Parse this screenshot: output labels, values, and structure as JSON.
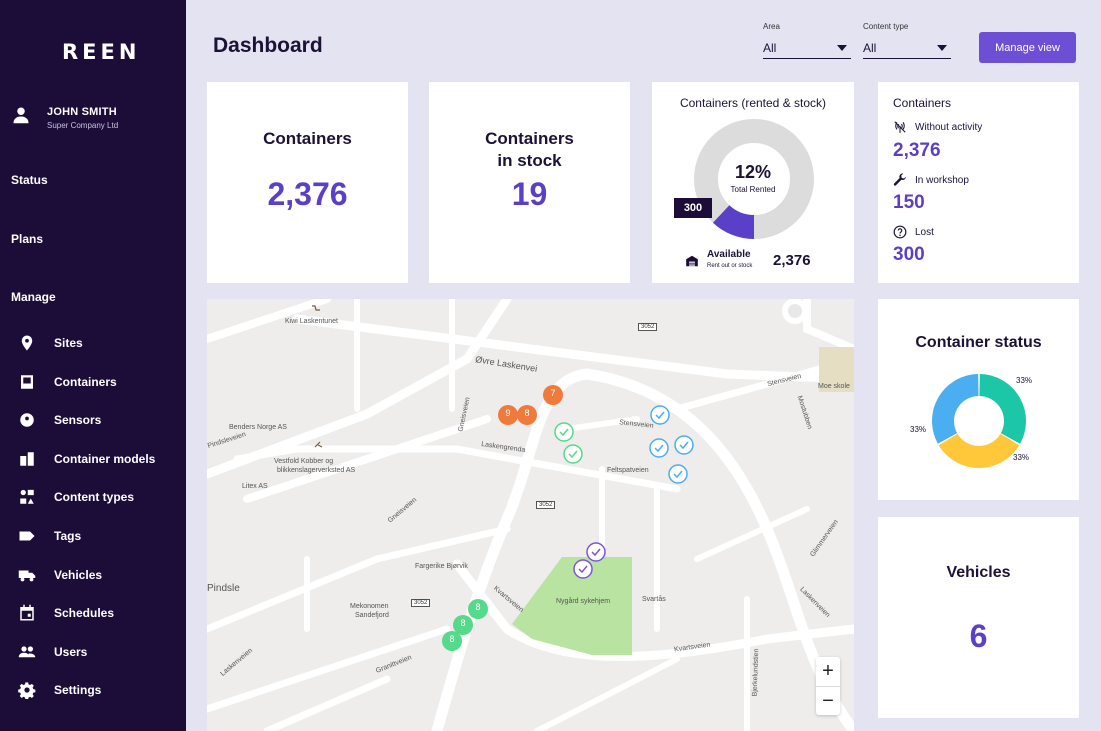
{
  "brand": "REEN",
  "user": {
    "name": "JOHN SMITH",
    "company": "Super Company Ltd"
  },
  "sections": {
    "status": "Status",
    "plans": "Plans",
    "manage": "Manage"
  },
  "nav": [
    {
      "label": "Sites",
      "icon": "pin-icon"
    },
    {
      "label": "Containers",
      "icon": "container-icon"
    },
    {
      "label": "Sensors",
      "icon": "sensor-icon"
    },
    {
      "label": "Container models",
      "icon": "container-model-icon"
    },
    {
      "label": "Content types",
      "icon": "content-types-icon"
    },
    {
      "label": "Tags",
      "icon": "tag-icon"
    },
    {
      "label": "Vehicles",
      "icon": "truck-icon"
    },
    {
      "label": "Schedules",
      "icon": "calendar-icon"
    },
    {
      "label": "Users",
      "icon": "users-icon"
    },
    {
      "label": "Settings",
      "icon": "gear-icon"
    }
  ],
  "header": {
    "title": "Dashboard",
    "area_label": "Area",
    "area_value": "All",
    "content_label": "Content type",
    "content_value": "All",
    "manage_button": "Manage view"
  },
  "cards": {
    "containers": {
      "title": "Containers",
      "value": "2,376"
    },
    "in_stock": {
      "title1": "Containers",
      "title2": "in stock",
      "value": "19"
    },
    "rented": {
      "title": "Containers (rented  & stock)",
      "percent": "12%",
      "percent_label": "Total Rented",
      "rented_value": "300",
      "rented_fraction": 0.12,
      "available_label": "Available",
      "available_sub": "Rent out or stock",
      "available_value": "2,376"
    },
    "containers_status_list": {
      "title": "Containers",
      "items": [
        {
          "label": "Without activity",
          "value": "2,376",
          "icon": "no-signal-icon"
        },
        {
          "label": "In workshop",
          "value": "150",
          "icon": "wrench-icon"
        },
        {
          "label": "Lost",
          "value": "300",
          "icon": "question-icon"
        }
      ]
    },
    "container_status": {
      "title": "Container status",
      "slices": [
        {
          "label": "33%",
          "value": 33,
          "color": "#1cc7a8"
        },
        {
          "label": "33%",
          "value": 33,
          "color": "#ffc83a"
        },
        {
          "label": "33%",
          "value": 33,
          "color": "#4aaef0"
        }
      ]
    },
    "vehicles": {
      "title": "Vehicles",
      "value": "6"
    }
  },
  "map": {
    "labels": [
      "Kiwi Laskentunet",
      "Øvre Laskenvei",
      "Benders Norge AS",
      "Vestfold Kobber og",
      "blikkenslagerverksted AS",
      "Litex AS",
      "Laskengrenda",
      "Stensveien",
      "Feltspatveien",
      "Stensveien",
      "Moe skole",
      "Fargerike Bjørvik",
      "Pindsle",
      "Mekonomen",
      "Sandefjord",
      "Nygård sykehjem",
      "Svartås",
      "Kvartsveien",
      "Kvartsveien",
      "Granittveien",
      "Gneisveien",
      "Gneisveien",
      "Laskenveien",
      "Glimmerveien",
      "Bjerkelundstien",
      "Mostubben",
      "Pindsleveien",
      "Laskenveien"
    ],
    "road_badges": [
      "3052",
      "3052",
      "3052"
    ],
    "clusters": [
      "7",
      "9",
      "8",
      "8",
      "8",
      "8"
    ],
    "zoom_in": "+",
    "zoom_out": "−"
  }
}
